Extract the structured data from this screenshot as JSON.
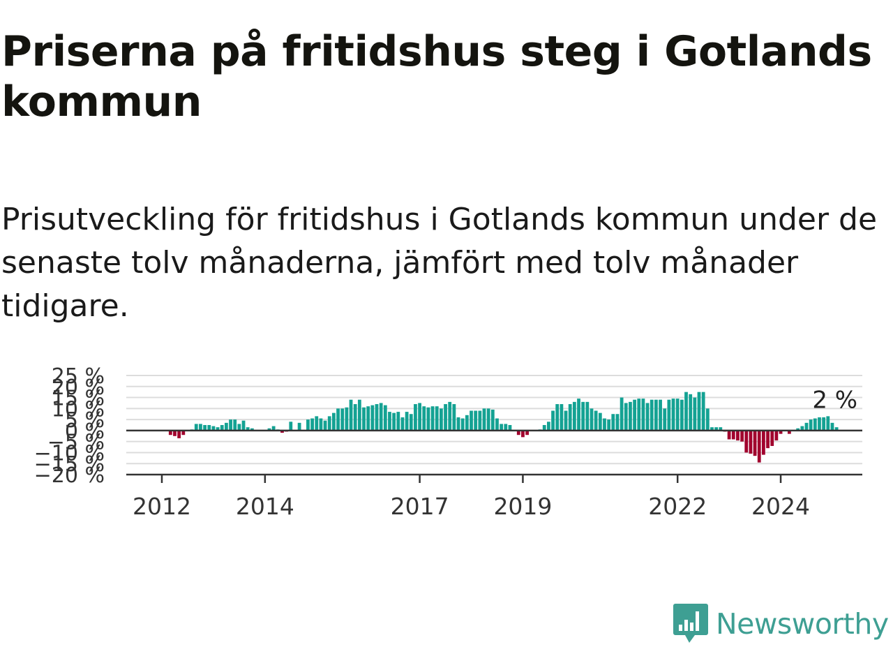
{
  "title": "Priserna på fritidshus steg i Gotlands kommun",
  "subtitle": "Prisutveckling för fritidshus i Gotlands kommun under de senaste tolv månaderna, jämfört med tolv månader tidigare.",
  "colors": {
    "positive": "#14a293",
    "negative": "#a1012d",
    "grid": "#dcdcdc",
    "axis": "#333333",
    "brand": "#3e9f93"
  },
  "logo": {
    "text": "Newsworthy",
    "icon": "bar-chart-speech-bubble-icon"
  },
  "chart_data": {
    "type": "bar",
    "title": "",
    "xlabel": "",
    "ylabel": "",
    "ylim": [
      -20,
      25
    ],
    "yticks": [
      25,
      20,
      15,
      10,
      5,
      0,
      -5,
      -10,
      -15,
      -20
    ],
    "ytick_labels": [
      "25 %",
      "20 %",
      "15 %",
      "10 %",
      "5 %",
      "0 %",
      "−5 %",
      "−10 %",
      "−15 %",
      "−20 %"
    ],
    "xticks": [
      {
        "label": "2012",
        "value": "2012-01"
      },
      {
        "label": "2014",
        "value": "2014-01"
      },
      {
        "label": "2017",
        "value": "2017-01"
      },
      {
        "label": "2019",
        "value": "2019-01"
      },
      {
        "label": "2022",
        "value": "2022-01"
      },
      {
        "label": "2024",
        "value": "2024-01"
      }
    ],
    "grid": true,
    "end_label": "2 %",
    "start": "2012-01",
    "unit": "%",
    "values": [
      0,
      0,
      -2,
      -2.5,
      -3.5,
      -2,
      0,
      0.5,
      3,
      3,
      2.5,
      2.5,
      2,
      1.5,
      2.5,
      3.5,
      5,
      5,
      3,
      4.5,
      1.5,
      1,
      0,
      0,
      0,
      1,
      2,
      0.5,
      -1,
      -0.5,
      4,
      0,
      3.5,
      0,
      5,
      5.5,
      6.5,
      5.5,
      4.5,
      6.5,
      8,
      10,
      10,
      10.5,
      14,
      12,
      14,
      10.5,
      11,
      11.5,
      12,
      12.5,
      11.5,
      8.5,
      8,
      8.5,
      6,
      8.5,
      7.5,
      12,
      12.5,
      11,
      10.5,
      11,
      11,
      10,
      12,
      13,
      12,
      6,
      5.5,
      7,
      9,
      9,
      9,
      10,
      10,
      9.5,
      5.5,
      3,
      3,
      2.5,
      0,
      -2,
      -3,
      -2,
      0,
      0,
      0.5,
      2.5,
      4,
      9,
      12,
      12,
      9,
      12,
      13,
      14.5,
      13,
      13,
      10,
      9,
      8,
      5.5,
      5,
      7.5,
      7.5,
      15,
      12.5,
      13,
      14,
      14.5,
      14.5,
      12.5,
      14,
      14,
      14,
      10,
      14,
      14.5,
      14.5,
      14,
      17.5,
      16.5,
      15,
      17.5,
      17.5,
      10,
      1.5,
      1.5,
      1.5,
      -0.5,
      -4,
      -4,
      -4.5,
      -5,
      -10,
      -10.5,
      -11.5,
      -14.5,
      -11,
      -8,
      -7,
      -4.5,
      -1.5,
      0,
      -1.5,
      0,
      1,
      2,
      3.5,
      5,
      5.5,
      6,
      6,
      6.5,
      3.5,
      1.5
    ],
    "series": [
      {
        "name": "",
        "values": "values"
      }
    ]
  }
}
